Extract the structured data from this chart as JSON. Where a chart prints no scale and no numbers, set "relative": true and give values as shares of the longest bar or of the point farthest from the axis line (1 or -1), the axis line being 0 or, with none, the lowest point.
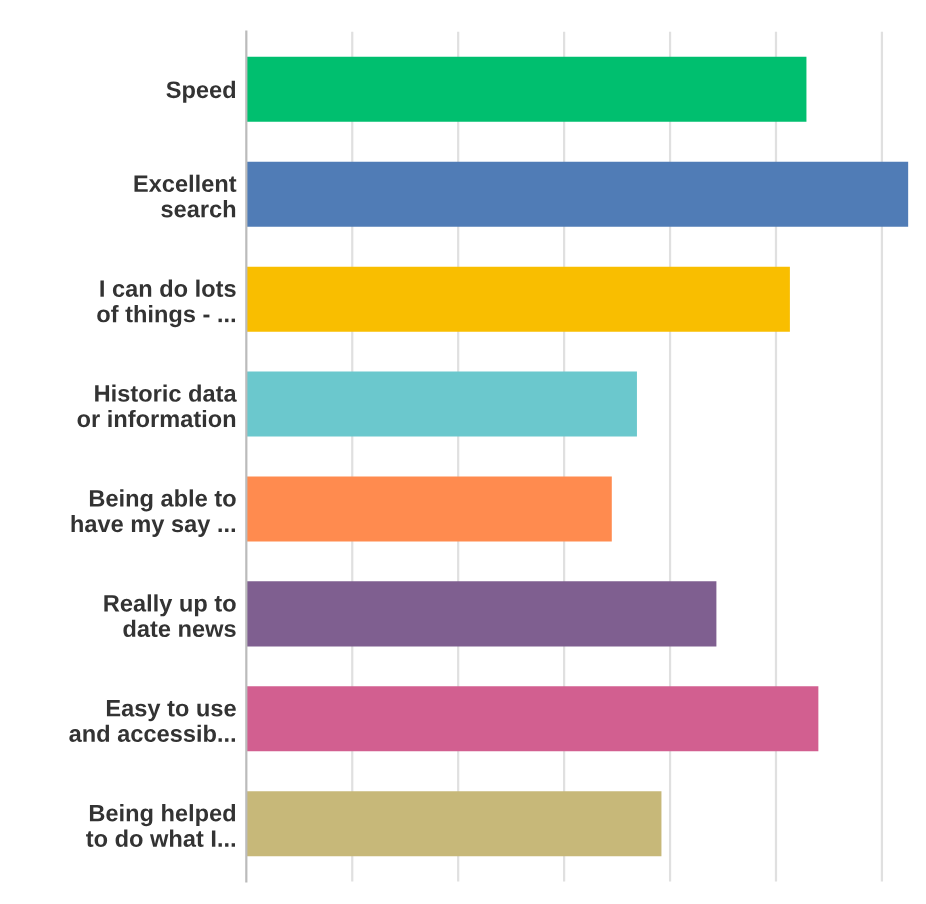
{
  "chart_data": {
    "type": "bar",
    "orientation": "horizontal",
    "relative": true,
    "grid": "x",
    "categories": [
      "Speed",
      "Excellent\nsearch",
      "I can do lots\nof things - ...",
      "Historic data\nor information",
      "Being able to\nhave my say ...",
      "Really up to\ndate news",
      "Easy to use\nand accessib...",
      "Being helped\nto do what I..."
    ],
    "values": [
      0.846,
      1,
      0.821,
      0.59,
      0.552,
      0.71,
      0.864,
      0.627
    ],
    "colors": [
      "#00bf6f",
      "#507cb6",
      "#f9be00",
      "#6bc8cd",
      "#ff8b4f",
      "#7f5f90",
      "#d25f90",
      "#c7b879"
    ]
  }
}
